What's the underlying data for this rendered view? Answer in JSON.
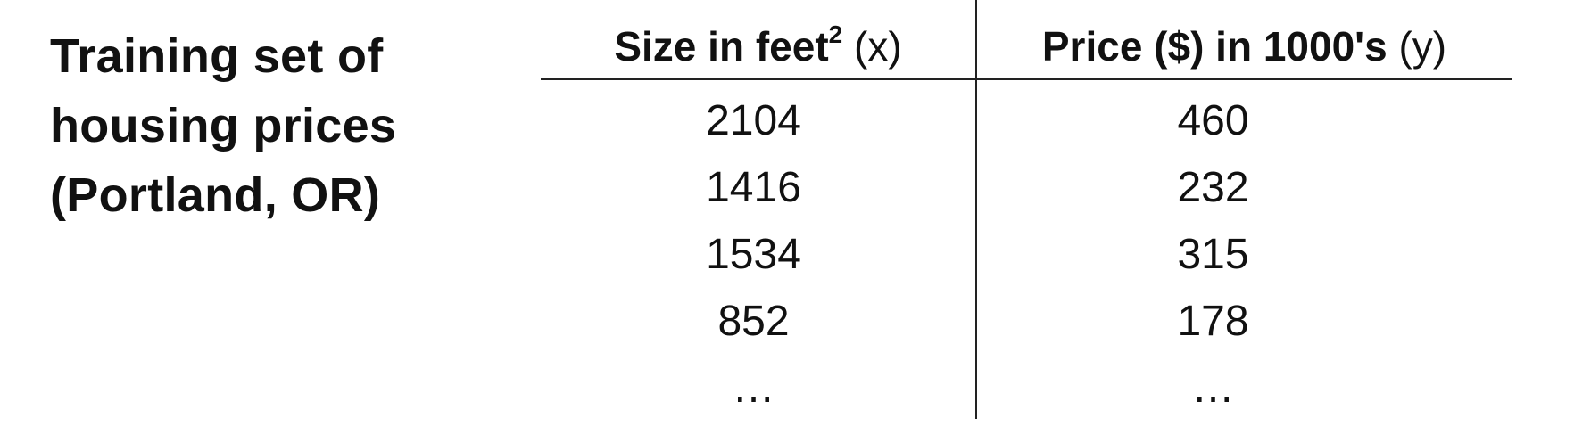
{
  "title_lines": [
    "Training set of",
    "housing prices",
    "(Portland, OR)"
  ],
  "table": {
    "columns": [
      {
        "label": "Size in feet",
        "superscript": "2",
        "variable": "(x)"
      },
      {
        "label": "Price ($) in 1000's",
        "variable": "(y)"
      }
    ],
    "rows": [
      [
        "2104",
        "460"
      ],
      [
        "1416",
        "232"
      ],
      [
        "1534",
        "315"
      ],
      [
        "852",
        "178"
      ],
      [
        "…",
        "…"
      ]
    ]
  }
}
